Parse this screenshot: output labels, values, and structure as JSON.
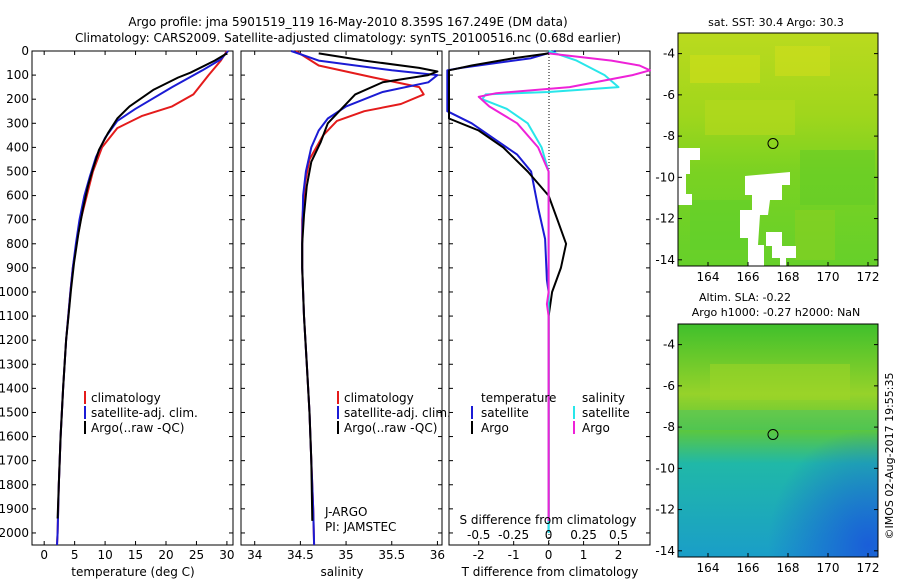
{
  "header": {
    "line1": "Argo profile: jma 5901519_119 16-May-2010 8.359S 167.249E (DM data)",
    "line2": "Climatology: CARS2009. Satellite-adjusted climatology: synTS_20100516.nc (0.68d earlier)"
  },
  "colors": {
    "climatology": "#e41b1b",
    "satellite": "#1b1bd4",
    "argo": "#000000",
    "sat_salinity": "#28e6ea",
    "argo_salinity": "#ee22d8"
  },
  "chart_data": [
    {
      "type": "line",
      "name": "temperature-panel",
      "xlabel": "temperature (deg C)",
      "ylabel": "",
      "xlim": [
        -2,
        31
      ],
      "ylim": [
        2050,
        0
      ],
      "xticks": [
        0,
        5,
        10,
        15,
        20,
        25,
        30
      ],
      "yticks": [
        0,
        100,
        200,
        300,
        400,
        500,
        600,
        700,
        800,
        900,
        1000,
        1100,
        1200,
        1300,
        1400,
        1500,
        1600,
        1700,
        1800,
        1900,
        2000
      ],
      "legend": [
        "climatology",
        "satellite-adj. clim.",
        "Argo(..raw -QC)"
      ],
      "series": [
        {
          "name": "climatology",
          "color": "climatology",
          "points": [
            [
              30,
              0
            ],
            [
              29,
              40
            ],
            [
              27,
              100
            ],
            [
              24.5,
              180
            ],
            [
              21,
              230
            ],
            [
              16,
              270
            ],
            [
              12,
              320
            ],
            [
              9.5,
              400
            ],
            [
              8,
              500
            ],
            [
              7,
              600
            ],
            [
              6,
              700
            ],
            [
              5.3,
              800
            ],
            [
              4.7,
              900
            ],
            [
              4.3,
              1000
            ],
            [
              3.6,
              1200
            ],
            [
              3.1,
              1400
            ],
            [
              2.7,
              1600
            ],
            [
              2.4,
              1800
            ],
            [
              2.2,
              2000
            ],
            [
              2.1,
              2050
            ]
          ]
        },
        {
          "name": "satellite-adj. clim.",
          "color": "satellite",
          "points": [
            [
              30.2,
              0
            ],
            [
              29,
              35
            ],
            [
              26,
              80
            ],
            [
              21,
              150
            ],
            [
              15,
              240
            ],
            [
              12,
              290
            ],
            [
              10,
              360
            ],
            [
              8.5,
              440
            ],
            [
              7.5,
              520
            ],
            [
              6.6,
              600
            ],
            [
              5.8,
              700
            ],
            [
              5.2,
              800
            ],
            [
              4.7,
              900
            ],
            [
              4.3,
              1000
            ],
            [
              3.6,
              1200
            ],
            [
              3.1,
              1400
            ],
            [
              2.7,
              1600
            ],
            [
              2.4,
              1800
            ],
            [
              2.2,
              2000
            ],
            [
              2.1,
              2050
            ]
          ]
        },
        {
          "name": "Argo(..raw -QC)",
          "color": "argo",
          "points": [
            [
              30,
              10
            ],
            [
              28,
              40
            ],
            [
              24,
              90
            ],
            [
              22,
              110
            ],
            [
              18,
              160
            ],
            [
              14,
              230
            ],
            [
              12,
              280
            ],
            [
              10.5,
              340
            ],
            [
              9,
              410
            ],
            [
              8,
              490
            ],
            [
              7.2,
              560
            ],
            [
              6.4,
              650
            ],
            [
              5.6,
              760
            ],
            [
              4.9,
              880
            ],
            [
              4.4,
              990
            ],
            [
              4,
              1100
            ],
            [
              3.6,
              1200
            ],
            [
              3.1,
              1400
            ],
            [
              2.7,
              1600
            ],
            [
              2.4,
              1800
            ],
            [
              2.2,
              1940
            ]
          ]
        }
      ]
    },
    {
      "type": "line",
      "name": "salinity-panel",
      "xlabel": "salinity",
      "ylabel": "",
      "xlim": [
        33.85,
        36.05
      ],
      "ylim": [
        2050,
        0
      ],
      "xticks": [
        34,
        34.5,
        35,
        35.5,
        36
      ],
      "legend": [
        "climatology",
        "satellite-adj. clim.",
        "Argo(..raw -QC)"
      ],
      "annotations": [
        "J-ARGO",
        "PI: JAMSTEC"
      ],
      "series": [
        {
          "name": "climatology",
          "color": "climatology",
          "points": [
            [
              34.45,
              0
            ],
            [
              34.7,
              60
            ],
            [
              35.3,
              110
            ],
            [
              35.8,
              150
            ],
            [
              35.85,
              180
            ],
            [
              35.6,
              220
            ],
            [
              35.2,
              250
            ],
            [
              34.9,
              290
            ],
            [
              34.75,
              350
            ],
            [
              34.6,
              450
            ],
            [
              34.55,
              550
            ],
            [
              34.52,
              700
            ],
            [
              34.52,
              900
            ],
            [
              34.54,
              1100
            ],
            [
              34.57,
              1300
            ],
            [
              34.6,
              1500
            ],
            [
              34.62,
              1700
            ],
            [
              34.64,
              1900
            ],
            [
              34.65,
              2050
            ]
          ]
        },
        {
          "name": "satellite-adj. clim.",
          "color": "satellite",
          "points": [
            [
              34.4,
              0
            ],
            [
              34.7,
              40
            ],
            [
              35.5,
              80
            ],
            [
              36,
              100
            ],
            [
              35.9,
              130
            ],
            [
              35.4,
              170
            ],
            [
              35,
              230
            ],
            [
              34.8,
              280
            ],
            [
              34.7,
              330
            ],
            [
              34.62,
              400
            ],
            [
              34.56,
              500
            ],
            [
              34.53,
              600
            ],
            [
              34.52,
              800
            ],
            [
              34.52,
              900
            ],
            [
              34.54,
              1100
            ],
            [
              34.57,
              1300
            ],
            [
              34.6,
              1500
            ],
            [
              34.62,
              1700
            ],
            [
              34.64,
              1900
            ],
            [
              34.65,
              2050
            ]
          ]
        },
        {
          "name": "Argo(..raw -QC)",
          "color": "argo",
          "points": [
            [
              34.7,
              10
            ],
            [
              35.2,
              40
            ],
            [
              35.8,
              70
            ],
            [
              36,
              85
            ],
            [
              35.9,
              100
            ],
            [
              35.4,
              130
            ],
            [
              35.1,
              180
            ],
            [
              34.95,
              240
            ],
            [
              34.8,
              300
            ],
            [
              34.72,
              380
            ],
            [
              34.62,
              460
            ],
            [
              34.57,
              560
            ],
            [
              34.54,
              680
            ],
            [
              34.52,
              800
            ],
            [
              34.52,
              900
            ],
            [
              34.54,
              1100
            ],
            [
              34.57,
              1300
            ],
            [
              34.6,
              1500
            ],
            [
              34.62,
              1700
            ],
            [
              34.63,
              1950
            ]
          ]
        }
      ]
    },
    {
      "type": "line",
      "name": "difference-panel",
      "xlabel": "T difference from climatology",
      "xlabel_top": "S difference from climatology",
      "ylabel": "",
      "xlim": [
        -2.85,
        2.9
      ],
      "ylim": [
        2050,
        0
      ],
      "xticks": [
        -2,
        -1,
        0,
        1,
        2
      ],
      "xticks_s": [
        -0.5,
        -0.25,
        0,
        0.25,
        0.5
      ],
      "xticks_s_labels": [
        "-0.5",
        "-0.25",
        "0",
        "0.25",
        "0.5"
      ],
      "legend_temperature": "temperature",
      "legend_salinity": "salinity",
      "legend_entries": [
        "satellite",
        "Argo",
        "satellite",
        "Argo"
      ],
      "series": [
        {
          "name": "T satellite",
          "color": "satellite",
          "points": [
            [
              0.2,
              0
            ],
            [
              -0.5,
              30
            ],
            [
              -1.5,
              50
            ],
            [
              -2.5,
              70
            ],
            [
              -2.9,
              80
            ],
            [
              -2.9,
              250
            ],
            [
              -2.2,
              300
            ],
            [
              -1.5,
              370
            ],
            [
              -0.9,
              430
            ],
            [
              -0.5,
              500
            ],
            [
              -0.3,
              650
            ],
            [
              -0.1,
              780
            ],
            [
              -0.05,
              950
            ],
            [
              0,
              1000
            ],
            [
              0,
              2000
            ]
          ]
        },
        {
          "name": "T Argo",
          "color": "argo",
          "points": [
            [
              0,
              10
            ],
            [
              -1,
              30
            ],
            [
              -2.2,
              60
            ],
            [
              -2.85,
              80
            ],
            [
              -2.85,
              280
            ],
            [
              -2,
              330
            ],
            [
              -1.3,
              400
            ],
            [
              -0.6,
              500
            ],
            [
              0,
              600
            ],
            [
              0.25,
              700
            ],
            [
              0.5,
              800
            ],
            [
              0.35,
              900
            ],
            [
              0.1,
              1000
            ],
            [
              0,
              1100
            ],
            [
              0,
              1950
            ]
          ]
        },
        {
          "name": "S satellite",
          "color": "sat_salinity",
          "points": [
            [
              0,
              0
            ],
            [
              0.8,
              40
            ],
            [
              1.6,
              100
            ],
            [
              2,
              150
            ],
            [
              0,
              170
            ],
            [
              -1.8,
              180
            ],
            [
              -1.9,
              200
            ],
            [
              -1.2,
              240
            ],
            [
              -0.6,
              300
            ],
            [
              -0.2,
              400
            ],
            [
              0,
              500
            ],
            [
              0,
              2000
            ]
          ]
        },
        {
          "name": "S Argo",
          "color": "argo_salinity",
          "points": [
            [
              0,
              10
            ],
            [
              1.8,
              40
            ],
            [
              2.6,
              60
            ],
            [
              2.9,
              80
            ],
            [
              2.4,
              100
            ],
            [
              0.6,
              150
            ],
            [
              -1.5,
              175
            ],
            [
              -2,
              190
            ],
            [
              -1.7,
              230
            ],
            [
              -0.9,
              300
            ],
            [
              -0.3,
              400
            ],
            [
              0,
              500
            ],
            [
              0,
              1000
            ],
            [
              -0.05,
              1050
            ],
            [
              0,
              1100
            ],
            [
              0,
              1950
            ]
          ]
        }
      ]
    },
    {
      "type": "heatmap",
      "name": "sst-map",
      "title": "sat. SST: 30.4  Argo: 30.3",
      "xlim": [
        162.5,
        172.5
      ],
      "ylim": [
        -14.3,
        -3
      ],
      "xticks": [
        164,
        166,
        168,
        170,
        172
      ],
      "yticks": [
        -4,
        -6,
        -8,
        -10,
        -12,
        -14
      ],
      "marker": {
        "lon": 167.249,
        "lat": -8.359
      }
    },
    {
      "type": "heatmap",
      "name": "sla-map",
      "title": "Altim. SLA: -0.22",
      "subtitle": "Argo h1000: -0.27  h2000: NaN",
      "xlim": [
        162.5,
        172.5
      ],
      "ylim": [
        -14.3,
        -3
      ],
      "xticks": [
        164,
        166,
        168,
        170,
        172
      ],
      "yticks": [
        -4,
        -6,
        -8,
        -10,
        -12,
        -14
      ],
      "marker": {
        "lon": 167.249,
        "lat": -8.359
      }
    }
  ],
  "footer": {
    "stamp": "©IMOS 02-Aug-2017 19:55:35"
  }
}
